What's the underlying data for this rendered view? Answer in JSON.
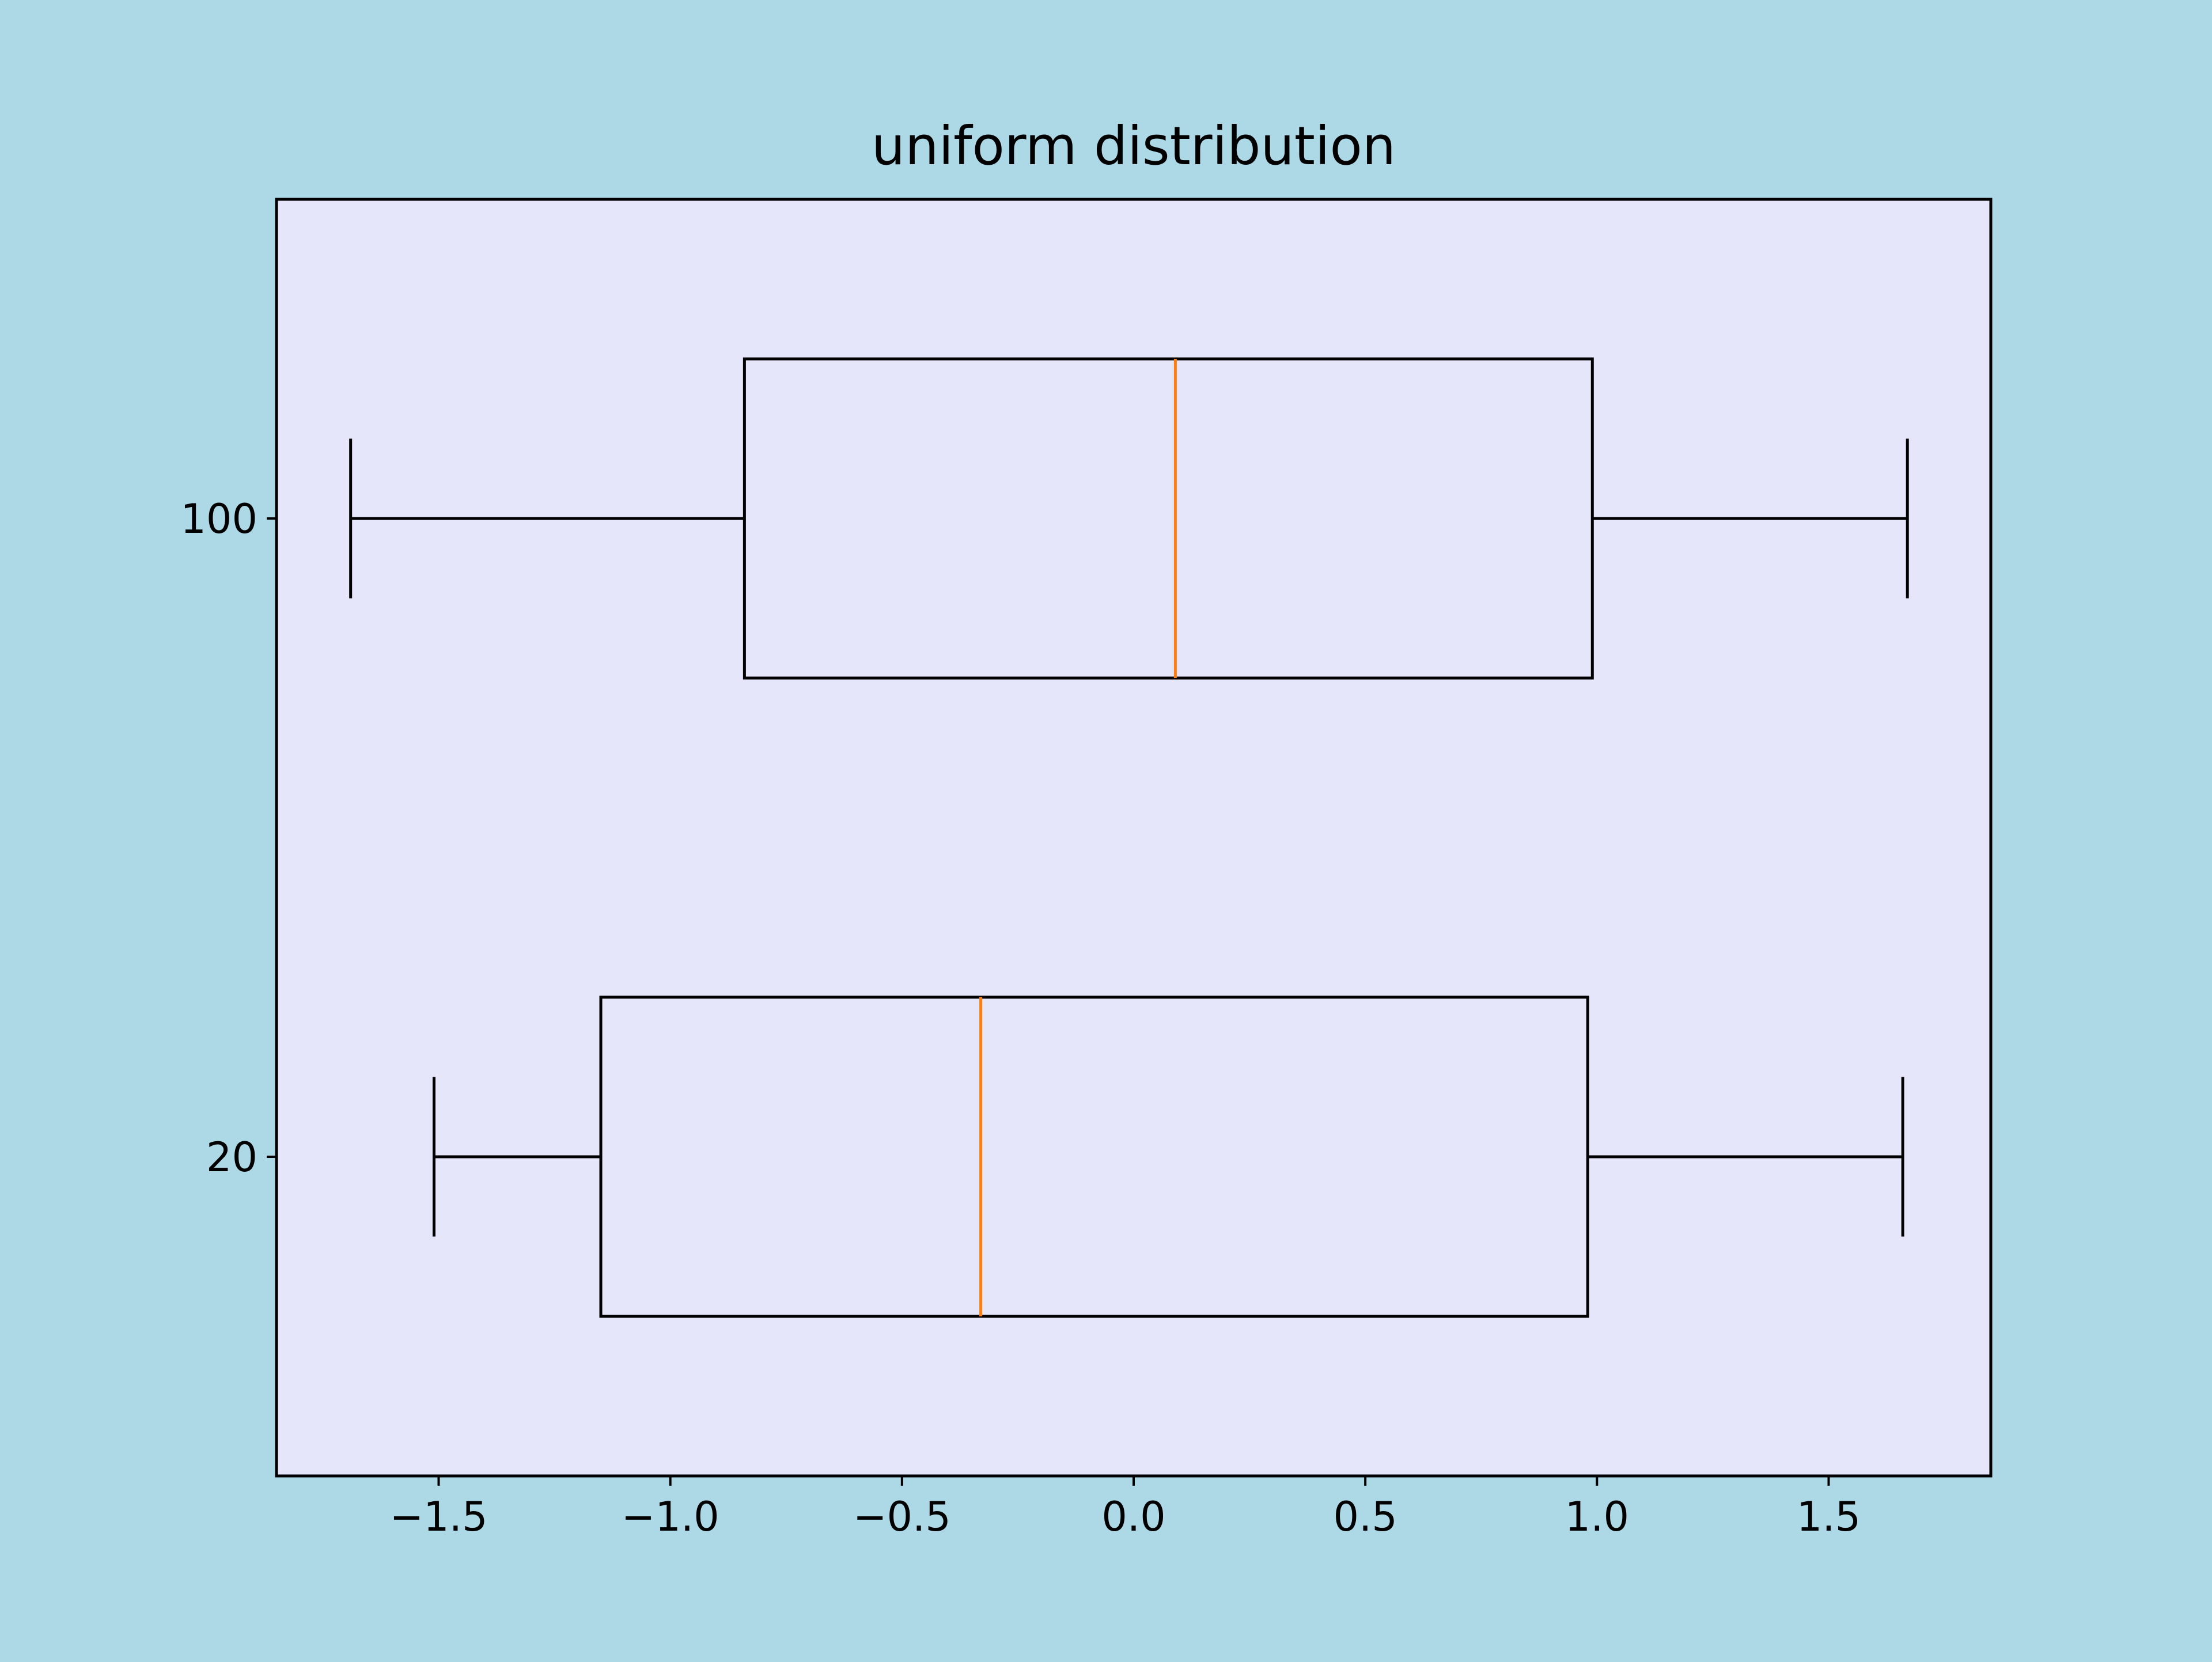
{
  "chart_data": {
    "type": "boxplot",
    "orientation": "horizontal",
    "title": "uniform distribution",
    "xlabel": "",
    "ylabel": "",
    "xlim": [
      -1.85,
      1.85
    ],
    "x_ticks": [
      -1.5,
      -1.0,
      -0.5,
      0.0,
      0.5,
      1.0,
      1.5
    ],
    "x_tick_labels": [
      "−1.5",
      "−1.0",
      "−0.5",
      "0.0",
      "0.5",
      "1.0",
      "1.5"
    ],
    "categories": [
      "20",
      "100"
    ],
    "boxes": [
      {
        "label": "20",
        "whisker_low": -1.51,
        "q1": -1.15,
        "median": -0.33,
        "q3": 0.98,
        "whisker_high": 1.66
      },
      {
        "label": "100",
        "whisker_low": -1.69,
        "q1": -0.84,
        "median": 0.09,
        "q3": 0.99,
        "whisker_high": 1.67
      }
    ],
    "grid": false,
    "legend": "none",
    "colors": {
      "figure_background": "#add8e6",
      "axes_background": "#e6e6fa",
      "box": "#000000",
      "median": "#ff7f0e"
    }
  }
}
